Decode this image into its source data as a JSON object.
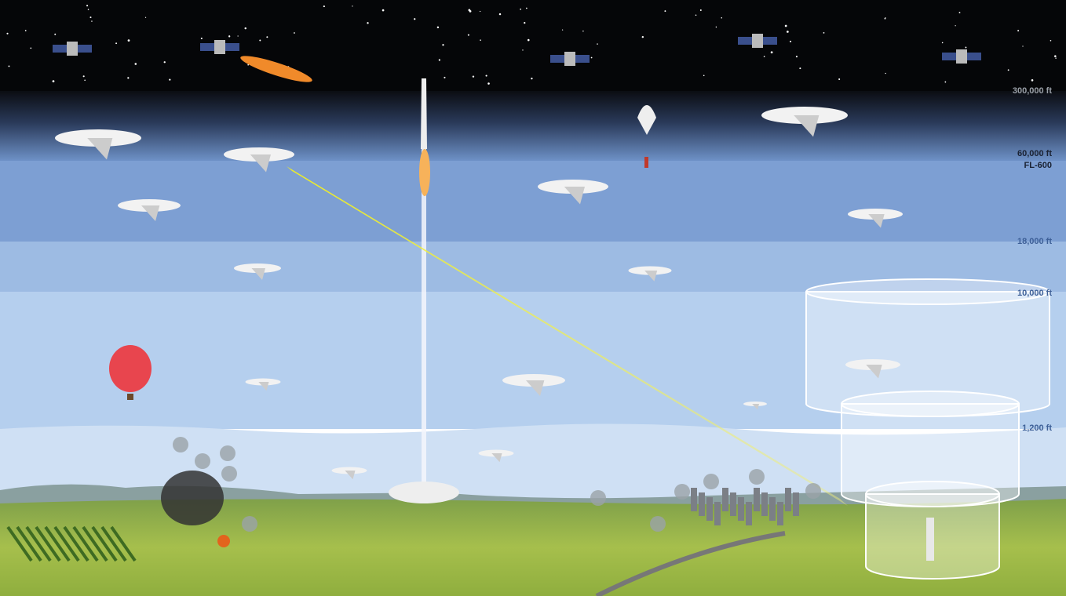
{
  "altitude_labels": [
    "300,000 ft",
    "60,000 ft",
    "FL-600",
    "18,000 ft",
    "10,000 ft",
    "1,200 ft"
  ]
}
